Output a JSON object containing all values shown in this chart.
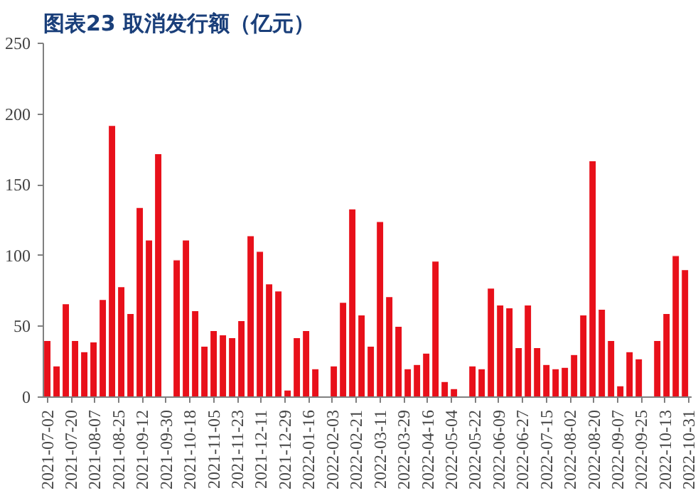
{
  "chart_data": {
    "type": "bar",
    "title": "图表23  取消发行额（亿元）",
    "x": [
      "2021-07-02",
      "2021-07-09",
      "2021-07-16",
      "2021-07-23",
      "2021-07-30",
      "2021-08-06",
      "2021-08-13",
      "2021-08-20",
      "2021-08-27",
      "2021-09-03",
      "2021-09-10",
      "2021-09-17",
      "2021-09-24",
      "2021-10-01",
      "2021-10-08",
      "2021-10-15",
      "2021-10-22",
      "2021-10-29",
      "2021-11-05",
      "2021-11-12",
      "2021-11-19",
      "2021-11-26",
      "2021-12-03",
      "2021-12-10",
      "2021-12-17",
      "2021-12-24",
      "2021-12-31",
      "2022-01-07",
      "2022-01-14",
      "2022-01-21",
      "2022-01-28",
      "2022-02-04",
      "2022-02-11",
      "2022-02-18",
      "2022-02-25",
      "2022-03-04",
      "2022-03-11",
      "2022-03-18",
      "2022-03-25",
      "2022-04-01",
      "2022-04-08",
      "2022-04-15",
      "2022-04-22",
      "2022-04-29",
      "2022-05-06",
      "2022-05-13",
      "2022-05-20",
      "2022-05-27",
      "2022-06-03",
      "2022-06-10",
      "2022-06-17",
      "2022-06-24",
      "2022-07-01",
      "2022-07-08",
      "2022-07-15",
      "2022-07-22",
      "2022-07-29",
      "2022-08-05",
      "2022-08-12",
      "2022-08-19",
      "2022-08-26",
      "2022-09-02",
      "2022-09-09",
      "2022-09-16",
      "2022-09-23",
      "2022-09-30",
      "2022-10-07",
      "2022-10-14",
      "2022-10-21",
      "2022-10-28"
    ],
    "values": [
      40,
      22,
      66,
      40,
      32,
      39,
      69,
      192,
      78,
      59,
      134,
      111,
      172,
      null,
      97,
      111,
      61,
      36,
      47,
      44,
      42,
      54,
      114,
      103,
      80,
      75,
      5,
      42,
      47,
      20,
      null,
      22,
      67,
      133,
      58,
      36,
      124,
      71,
      50,
      20,
      23,
      31,
      96,
      11,
      6,
      null,
      22,
      20,
      77,
      65,
      63,
      35,
      65,
      35,
      23,
      20,
      21,
      30,
      58,
      167,
      62,
      40,
      8,
      32,
      27,
      null,
      40,
      59,
      100,
      90
    ],
    "color": "#e8101a",
    "xlim": [
      "2021-06-29",
      "2022-11-02"
    ],
    "xticks": [
      {
        "value": "2021-07-02",
        "label": "2021-07-02"
      },
      {
        "value": "2021-07-20",
        "label": "2021-07-20"
      },
      {
        "value": "2021-08-07",
        "label": "2021-08-07"
      },
      {
        "value": "2021-08-25",
        "label": "2021-08-25"
      },
      {
        "value": "2021-09-12",
        "label": "2021-09-12"
      },
      {
        "value": "2021-09-30",
        "label": "2021-09-30"
      },
      {
        "value": "2021-10-18",
        "label": "2021-10-18"
      },
      {
        "value": "2021-11-05",
        "label": "2021-11-05"
      },
      {
        "value": "2021-11-23",
        "label": "2021-11-23"
      },
      {
        "value": "2021-12-11",
        "label": "2021-12-11"
      },
      {
        "value": "2021-12-29",
        "label": "2021-12-29"
      },
      {
        "value": "2022-01-16",
        "label": "2022-01-16"
      },
      {
        "value": "2022-02-03",
        "label": "2022-02-03"
      },
      {
        "value": "2022-02-21",
        "label": "2022-02-21"
      },
      {
        "value": "2022-03-11",
        "label": "2022-03-11"
      },
      {
        "value": "2022-03-29",
        "label": "2022-03-29"
      },
      {
        "value": "2022-04-16",
        "label": "2022-04-16"
      },
      {
        "value": "2022-05-04",
        "label": "2022-05-04"
      },
      {
        "value": "2022-05-22",
        "label": "2022-05-22"
      },
      {
        "value": "2022-06-09",
        "label": "2022-06-09"
      },
      {
        "value": "2022-06-27",
        "label": "2022-06-27"
      },
      {
        "value": "2022-07-15",
        "label": "2022-07-15"
      },
      {
        "value": "2022-08-02",
        "label": "2022-08-02"
      },
      {
        "value": "2022-08-20",
        "label": "2022-08-20"
      },
      {
        "value": "2022-09-07",
        "label": "2022-09-07"
      },
      {
        "value": "2022-09-25",
        "label": "2022-09-25"
      },
      {
        "value": "2022-10-13",
        "label": "2022-10-13"
      },
      {
        "value": "2022-10-31",
        "label": "2022-10-31"
      }
    ],
    "ylim": [
      0,
      250
    ],
    "yticks": [
      0,
      50,
      100,
      150,
      200,
      250
    ],
    "grid": false
  }
}
